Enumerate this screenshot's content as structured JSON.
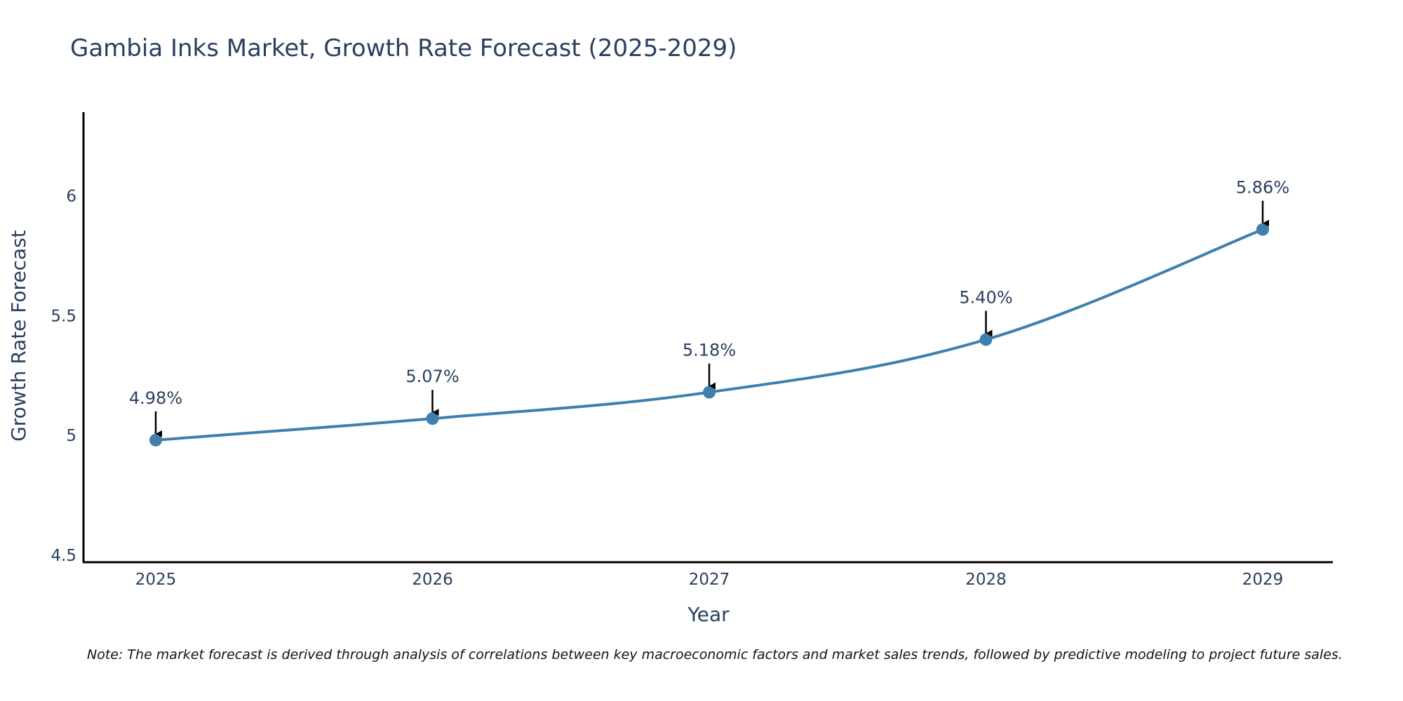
{
  "chart_data": {
    "type": "line",
    "title": "Gambia Inks Market, Growth Rate Forecast (2025-2029)",
    "xlabel": "Year",
    "ylabel": "Growth Rate Forecast",
    "categories": [
      "2025",
      "2026",
      "2027",
      "2028",
      "2029"
    ],
    "series": [
      {
        "name": "Growth Rate Forecast",
        "values": [
          4.98,
          5.07,
          5.18,
          5.4,
          5.86
        ],
        "labels": [
          "4.98%",
          "5.07%",
          "5.18%",
          "5.40%",
          "5.86%"
        ]
      }
    ],
    "ylim": [
      4.47,
      6.35
    ],
    "yticks": [
      4.5,
      5,
      5.5,
      6
    ],
    "ytick_labels": [
      "4.5",
      "5",
      "5.5",
      "6"
    ],
    "grid": false,
    "line_color": "#3f7fae",
    "marker_color": "#3f7fae",
    "arrow_color": "#000000",
    "note": "Note: The market forecast is derived through analysis of correlations between key macroeconomic factors and market sales trends, followed by predictive modeling to project future sales."
  }
}
